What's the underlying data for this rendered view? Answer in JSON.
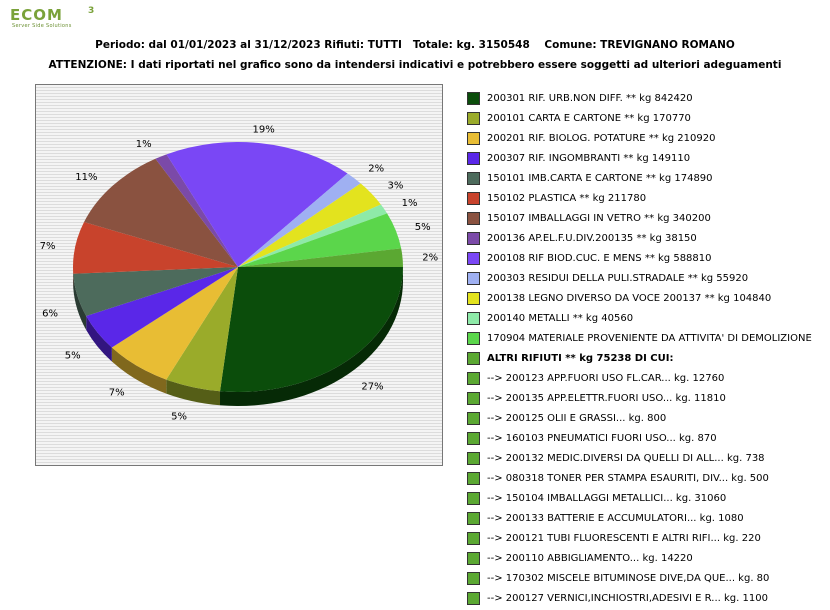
{
  "logo": {
    "text": "ECOM",
    "sup": "3",
    "tagline": "Server Side Solutions"
  },
  "header": {
    "line1": "Periodo: dal 01/01/2023 al 31/12/2023 Rifiuti: TUTTI   Totale: kg. 3150548    Comune: TREVIGNANO ROMANO",
    "line2": "ATTENZIONE: I dati riportati nel grafico sono da intendersi indicativi e potrebbero essere soggetti ad ulteriori adeguamenti"
  },
  "legend": {
    "items": [
      {
        "label": "200301 RIF. URB.NON DIFF. ** kg 842420",
        "color": "#0b4d0b"
      },
      {
        "label": "200101 CARTA E CARTONE ** kg 170770",
        "color": "#9aab2a"
      },
      {
        "label": "200201 RIF. BIOLOG. POTATURE ** kg 210920",
        "color": "#e8bd34"
      },
      {
        "label": "200307 RIF. INGOMBRANTI ** kg 149110",
        "color": "#5a27e8"
      },
      {
        "label": "150101 IMB.CARTA E CARTONE ** kg 174890",
        "color": "#4d6b5c"
      },
      {
        "label": "150102 PLASTICA ** kg 211780",
        "color": "#c8432c"
      },
      {
        "label": "150107 IMBALLAGGI IN VETRO ** kg 340200",
        "color": "#8a5240"
      },
      {
        "label": "200136 AP.EL.F.U.DIV.200135 ** kg 38150",
        "color": "#7b4aa8"
      },
      {
        "label": "200108 RIF BIOD.CUC. E MENS ** kg 588810",
        "color": "#7a47f5"
      },
      {
        "label": "200303 RESIDUI DELLA PULI.STRADALE ** kg 55920",
        "color": "#9fb0f2"
      },
      {
        "label": "200138 LEGNO DIVERSO DA VOCE 200137 ** kg 104840",
        "color": "#e3e31e"
      },
      {
        "label": "200140 METALLI ** kg 40560",
        "color": "#8eeaa8"
      },
      {
        "label": "170904 MATERIALE PROVENIENTE DA ATTIVITA' DI DEMOLIZIONE",
        "color": "#5bd64b"
      },
      {
        "label": "ALTRI RIFIUTI ** kg 75238 DI CUI:",
        "color": "#5ba832",
        "bold": true
      },
      {
        "label": "  -->  200123 APP.FUORI USO FL.CAR... kg. 12760",
        "color": "#5ba832"
      },
      {
        "label": "  -->  200135 APP.ELETTR.FUORI USO... kg. 11810",
        "color": "#5ba832"
      },
      {
        "label": "  -->  200125 OLII E GRASSI... kg. 800",
        "color": "#5ba832"
      },
      {
        "label": "  -->  160103 PNEUMATICI FUORI USO... kg. 870",
        "color": "#5ba832"
      },
      {
        "label": "  -->  200132 MEDIC.DIVERSI DA QUELLI DI ALL... kg. 738",
        "color": "#5ba832"
      },
      {
        "label": "  -->  080318 TONER PER STAMPA ESAURITI, DIV... kg. 500",
        "color": "#5ba832"
      },
      {
        "label": "  -->  150104 IMBALLAGGI METALLICI... kg. 31060",
        "color": "#5ba832"
      },
      {
        "label": "  -->  200133 BATTERIE E ACCUMULATORI... kg. 1080",
        "color": "#5ba832"
      },
      {
        "label": "  -->  200121 TUBI FLUORESCENTI E ALTRI RIFI... kg. 220",
        "color": "#5ba832"
      },
      {
        "label": "  -->  200110 ABBIGLIAMENTO... kg. 14220",
        "color": "#5ba832"
      },
      {
        "label": "  -->  170302 MISCELE BITUMINOSE DIVE,DA QUE... kg. 80",
        "color": "#5ba832"
      },
      {
        "label": "  -->  200127 VERNICI,INCHIOSTRI,ADESIVI E R... kg. 1100",
        "color": "#5ba832"
      }
    ]
  },
  "chart_data": {
    "type": "pie",
    "title": "",
    "slices": [
      {
        "name": "200301 RIF. URB.NON DIFF.",
        "value": 842420,
        "pct_label": "27%",
        "color": "#0b4d0b"
      },
      {
        "name": "200101 CARTA E CARTONE",
        "value": 170770,
        "pct_label": "5%",
        "color": "#9aab2a"
      },
      {
        "name": "200201 RIF. BIOLOG. POTATURE",
        "value": 210920,
        "pct_label": "7%",
        "color": "#e8bd34"
      },
      {
        "name": "200307 RIF. INGOMBRANTI",
        "value": 149110,
        "pct_label": "5%",
        "color": "#5a27e8"
      },
      {
        "name": "150101 IMB.CARTA E CARTONE",
        "value": 174890,
        "pct_label": "6%",
        "color": "#4d6b5c"
      },
      {
        "name": "150102 PLASTICA",
        "value": 211780,
        "pct_label": "7%",
        "color": "#c8432c"
      },
      {
        "name": "150107 IMBALLAGGI IN VETRO",
        "value": 340200,
        "pct_label": "11%",
        "color": "#8a5240"
      },
      {
        "name": "200136 AP.EL.F.U.DIV.200135",
        "value": 38150,
        "pct_label": "1%",
        "color": "#7b4aa8"
      },
      {
        "name": "200108 RIF BIOD.CUC. E MENS",
        "value": 588810,
        "pct_label": "19%",
        "color": "#7a47f5"
      },
      {
        "name": "200303 RESIDUI DELLA PULI.STRADALE",
        "value": 55920,
        "pct_label": "2%",
        "color": "#9fb0f2"
      },
      {
        "name": "200138 LEGNO DIVERSO DA VOCE 200137",
        "value": 104840,
        "pct_label": "3%",
        "color": "#e3e31e"
      },
      {
        "name": "200140 METALLI",
        "value": 40560,
        "pct_label": "1%",
        "color": "#8eeaa8"
      },
      {
        "name": "170904 MATERIALE PROVENIENTE DA ATTIVITA' DI DEMOLIZIONE",
        "value": 146940,
        "pct_label": "5%",
        "color": "#5bd64b"
      },
      {
        "name": "ALTRI RIFIUTI",
        "value": 75238,
        "pct_label": "2%",
        "color": "#5ba832"
      }
    ]
  }
}
